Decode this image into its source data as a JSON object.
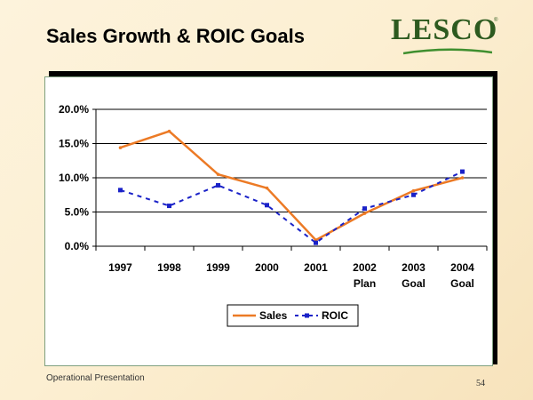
{
  "slide": {
    "title": "Sales Growth & ROIC Goals",
    "footer": "Operational Presentation",
    "page_number": "54",
    "logo_text": "LESCO",
    "logo_reg": "®"
  },
  "colors": {
    "sales": "#ec7a25",
    "roic": "#1a22c8",
    "grid": "#000000"
  },
  "chart_data": {
    "type": "line",
    "title": "",
    "xlabel": "",
    "ylabel": "",
    "categories": [
      [
        "1997"
      ],
      [
        "1998"
      ],
      [
        "1999"
      ],
      [
        "2000"
      ],
      [
        "2001"
      ],
      [
        "2002",
        "Plan"
      ],
      [
        "2003",
        "Goal"
      ],
      [
        "2004",
        "Goal"
      ]
    ],
    "ylim": [
      0,
      20
    ],
    "yticks": [
      0,
      5,
      10,
      15,
      20
    ],
    "ytick_labels": [
      "0.0%",
      "5.0%",
      "10.0%",
      "15.0%",
      "20.0%"
    ],
    "series": [
      {
        "name": "Sales",
        "style": "solid",
        "values": [
          14.4,
          16.8,
          10.5,
          8.5,
          0.9,
          4.8,
          8.1,
          10.0
        ]
      },
      {
        "name": "ROIC",
        "style": "dashed",
        "values": [
          8.2,
          5.9,
          8.9,
          6.0,
          0.5,
          5.5,
          7.5,
          10.9
        ]
      }
    ],
    "legend_position": "bottom-center",
    "grid": true
  }
}
